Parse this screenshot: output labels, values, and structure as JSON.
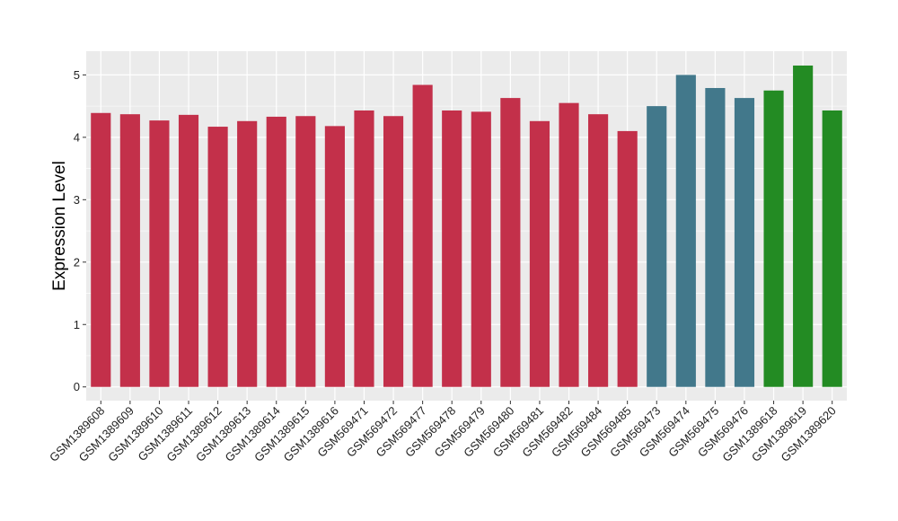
{
  "chart_data": {
    "type": "bar",
    "title": "",
    "xlabel": "",
    "ylabel": "Expression Level",
    "ylim": [
      -0.22,
      5.38
    ],
    "yticks": [
      0,
      1,
      2,
      3,
      4,
      5
    ],
    "yticklabels": [
      "0",
      "1",
      "2",
      "3",
      "4",
      "5"
    ],
    "grid": true,
    "legend": "none",
    "categories": [
      "GSM1389608",
      "GSM1389609",
      "GSM1389610",
      "GSM1389611",
      "GSM1389612",
      "GSM1389613",
      "GSM1389614",
      "GSM1389615",
      "GSM1389616",
      "GSM569471",
      "GSM569472",
      "GSM569477",
      "GSM569478",
      "GSM569479",
      "GSM569480",
      "GSM569481",
      "GSM569482",
      "GSM569484",
      "GSM569485",
      "GSM569473",
      "GSM569474",
      "GSM569475",
      "GSM569476",
      "GSM1389618",
      "GSM1389619",
      "GSM1389620"
    ],
    "values": [
      4.39,
      4.37,
      4.27,
      4.36,
      4.17,
      4.26,
      4.33,
      4.34,
      4.18,
      4.43,
      4.34,
      4.84,
      4.43,
      4.41,
      4.63,
      4.26,
      4.55,
      4.37,
      4.1,
      4.5,
      5.0,
      4.79,
      4.63,
      4.75,
      5.15,
      4.43
    ],
    "bar_colors": [
      "#c3304a",
      "#c3304a",
      "#c3304a",
      "#c3304a",
      "#c3304a",
      "#c3304a",
      "#c3304a",
      "#c3304a",
      "#c3304a",
      "#c3304a",
      "#c3304a",
      "#c3304a",
      "#c3304a",
      "#c3304a",
      "#c3304a",
      "#c3304a",
      "#c3304a",
      "#c3304a",
      "#c3304a",
      "#42788b",
      "#42788b",
      "#42788b",
      "#42788b",
      "#238b23",
      "#238b23",
      "#238b23"
    ],
    "panel_background": "#ebebeb",
    "grid_color": "#ffffff"
  }
}
